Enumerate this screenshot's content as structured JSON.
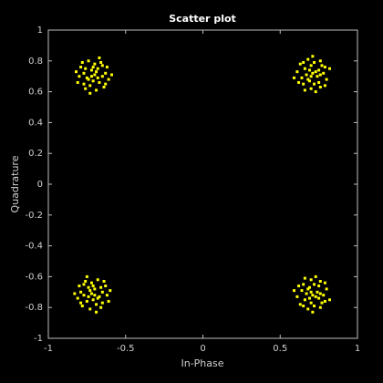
{
  "chart_data": {
    "type": "scatter",
    "title": "Scatter plot",
    "x_label": "In-Phase",
    "y_label": "Quadrature",
    "color": "#ffff00",
    "xlim": [
      -1,
      1
    ],
    "ylim": [
      -1,
      1
    ],
    "xticks": [
      -1,
      -0.5,
      0,
      0.5,
      1
    ],
    "yticks": [
      -1,
      -0.8,
      -0.6,
      -0.4,
      -0.2,
      0,
      0.2,
      0.4,
      0.6,
      0.8,
      1
    ],
    "grid": false,
    "x": [
      -0.68,
      -0.76,
      -0.63,
      -0.73,
      -0.71,
      -0.65,
      -0.8,
      -0.67,
      -0.74,
      -0.7,
      -0.77,
      -0.61,
      -0.72,
      -0.66,
      -0.79,
      -0.69,
      -0.75,
      -0.64,
      -0.82,
      -0.68,
      -0.71,
      -0.78,
      -0.62,
      -0.73,
      -0.67,
      -0.76,
      -0.59,
      -0.81,
      -0.7,
      -0.65,
      -0.74,
      -0.69,
      -0.77,
      -0.63,
      -0.72,
      0.69,
      0.75,
      0.72,
      0.64,
      0.76,
      0.77,
      0.7,
      0.66,
      0.8,
      0.71,
      0.65,
      0.68,
      0.74,
      0.79,
      0.76,
      0.61,
      0.69,
      0.63,
      0.73,
      0.75,
      0.67,
      0.79,
      0.76,
      0.59,
      0.82,
      0.62,
      0.71,
      0.66,
      0.78,
      0.7,
      0.68,
      0.73,
      0.72,
      0.65,
      0.7,
      -0.74,
      -0.66,
      -0.79,
      -0.69,
      -0.71,
      -0.77,
      -0.62,
      -0.75,
      -0.68,
      -0.72,
      -0.65,
      -0.81,
      -0.7,
      -0.76,
      -0.63,
      -0.73,
      -0.67,
      -0.78,
      -0.6,
      -0.74,
      -0.71,
      -0.64,
      -0.8,
      -0.69,
      -0.75,
      -0.66,
      -0.83,
      -0.61,
      -0.72,
      -0.77,
      -0.68,
      -0.73,
      -0.65,
      -0.79,
      -0.7,
      0.69,
      0.75,
      0.72,
      0.64,
      0.76,
      0.77,
      0.7,
      0.66,
      0.8,
      0.71,
      0.65,
      0.68,
      0.74,
      0.79,
      0.76,
      0.61,
      0.69,
      0.63,
      0.73,
      0.75,
      0.67,
      0.79,
      0.76,
      0.59,
      0.82,
      0.62,
      0.71,
      0.66,
      0.78,
      0.7,
      0.68,
      0.73,
      0.72,
      0.65,
      0.7
    ],
    "y": [
      0.69,
      0.75,
      0.72,
      0.64,
      0.76,
      0.77,
      0.7,
      0.66,
      0.8,
      0.71,
      0.65,
      0.68,
      0.74,
      0.79,
      0.76,
      0.61,
      0.69,
      0.63,
      0.73,
      0.75,
      0.67,
      0.79,
      0.76,
      0.59,
      0.82,
      0.62,
      0.71,
      0.66,
      0.78,
      0.7,
      0.68,
      0.73,
      0.72,
      0.65,
      0.7,
      0.74,
      0.66,
      0.79,
      0.69,
      0.71,
      0.77,
      0.62,
      0.75,
      0.68,
      0.72,
      0.65,
      0.81,
      0.7,
      0.76,
      0.63,
      0.73,
      0.67,
      0.78,
      0.6,
      0.74,
      0.71,
      0.64,
      0.8,
      0.69,
      0.75,
      0.66,
      0.83,
      0.61,
      0.72,
      0.77,
      0.68,
      0.73,
      0.65,
      0.79,
      0.7,
      -0.73,
      -0.67,
      -0.7,
      -0.78,
      -0.66,
      -0.65,
      -0.72,
      -0.76,
      -0.62,
      -0.71,
      -0.77,
      -0.74,
      -0.68,
      -0.63,
      -0.66,
      -0.81,
      -0.73,
      -0.79,
      -0.69,
      -0.67,
      -0.75,
      -0.63,
      -0.66,
      -0.83,
      -0.6,
      -0.8,
      -0.71,
      -0.76,
      -0.64,
      -0.72,
      -0.74,
      -0.69,
      -0.7,
      -0.77,
      -0.72,
      -0.74,
      -0.66,
      -0.79,
      -0.69,
      -0.71,
      -0.77,
      -0.62,
      -0.75,
      -0.68,
      -0.72,
      -0.65,
      -0.81,
      -0.7,
      -0.76,
      -0.63,
      -0.73,
      -0.67,
      -0.78,
      -0.6,
      -0.74,
      -0.71,
      -0.64,
      -0.8,
      -0.69,
      -0.75,
      -0.66,
      -0.83,
      -0.61,
      -0.72,
      -0.77,
      -0.68,
      -0.73,
      -0.65,
      -0.79,
      -0.7
    ]
  }
}
